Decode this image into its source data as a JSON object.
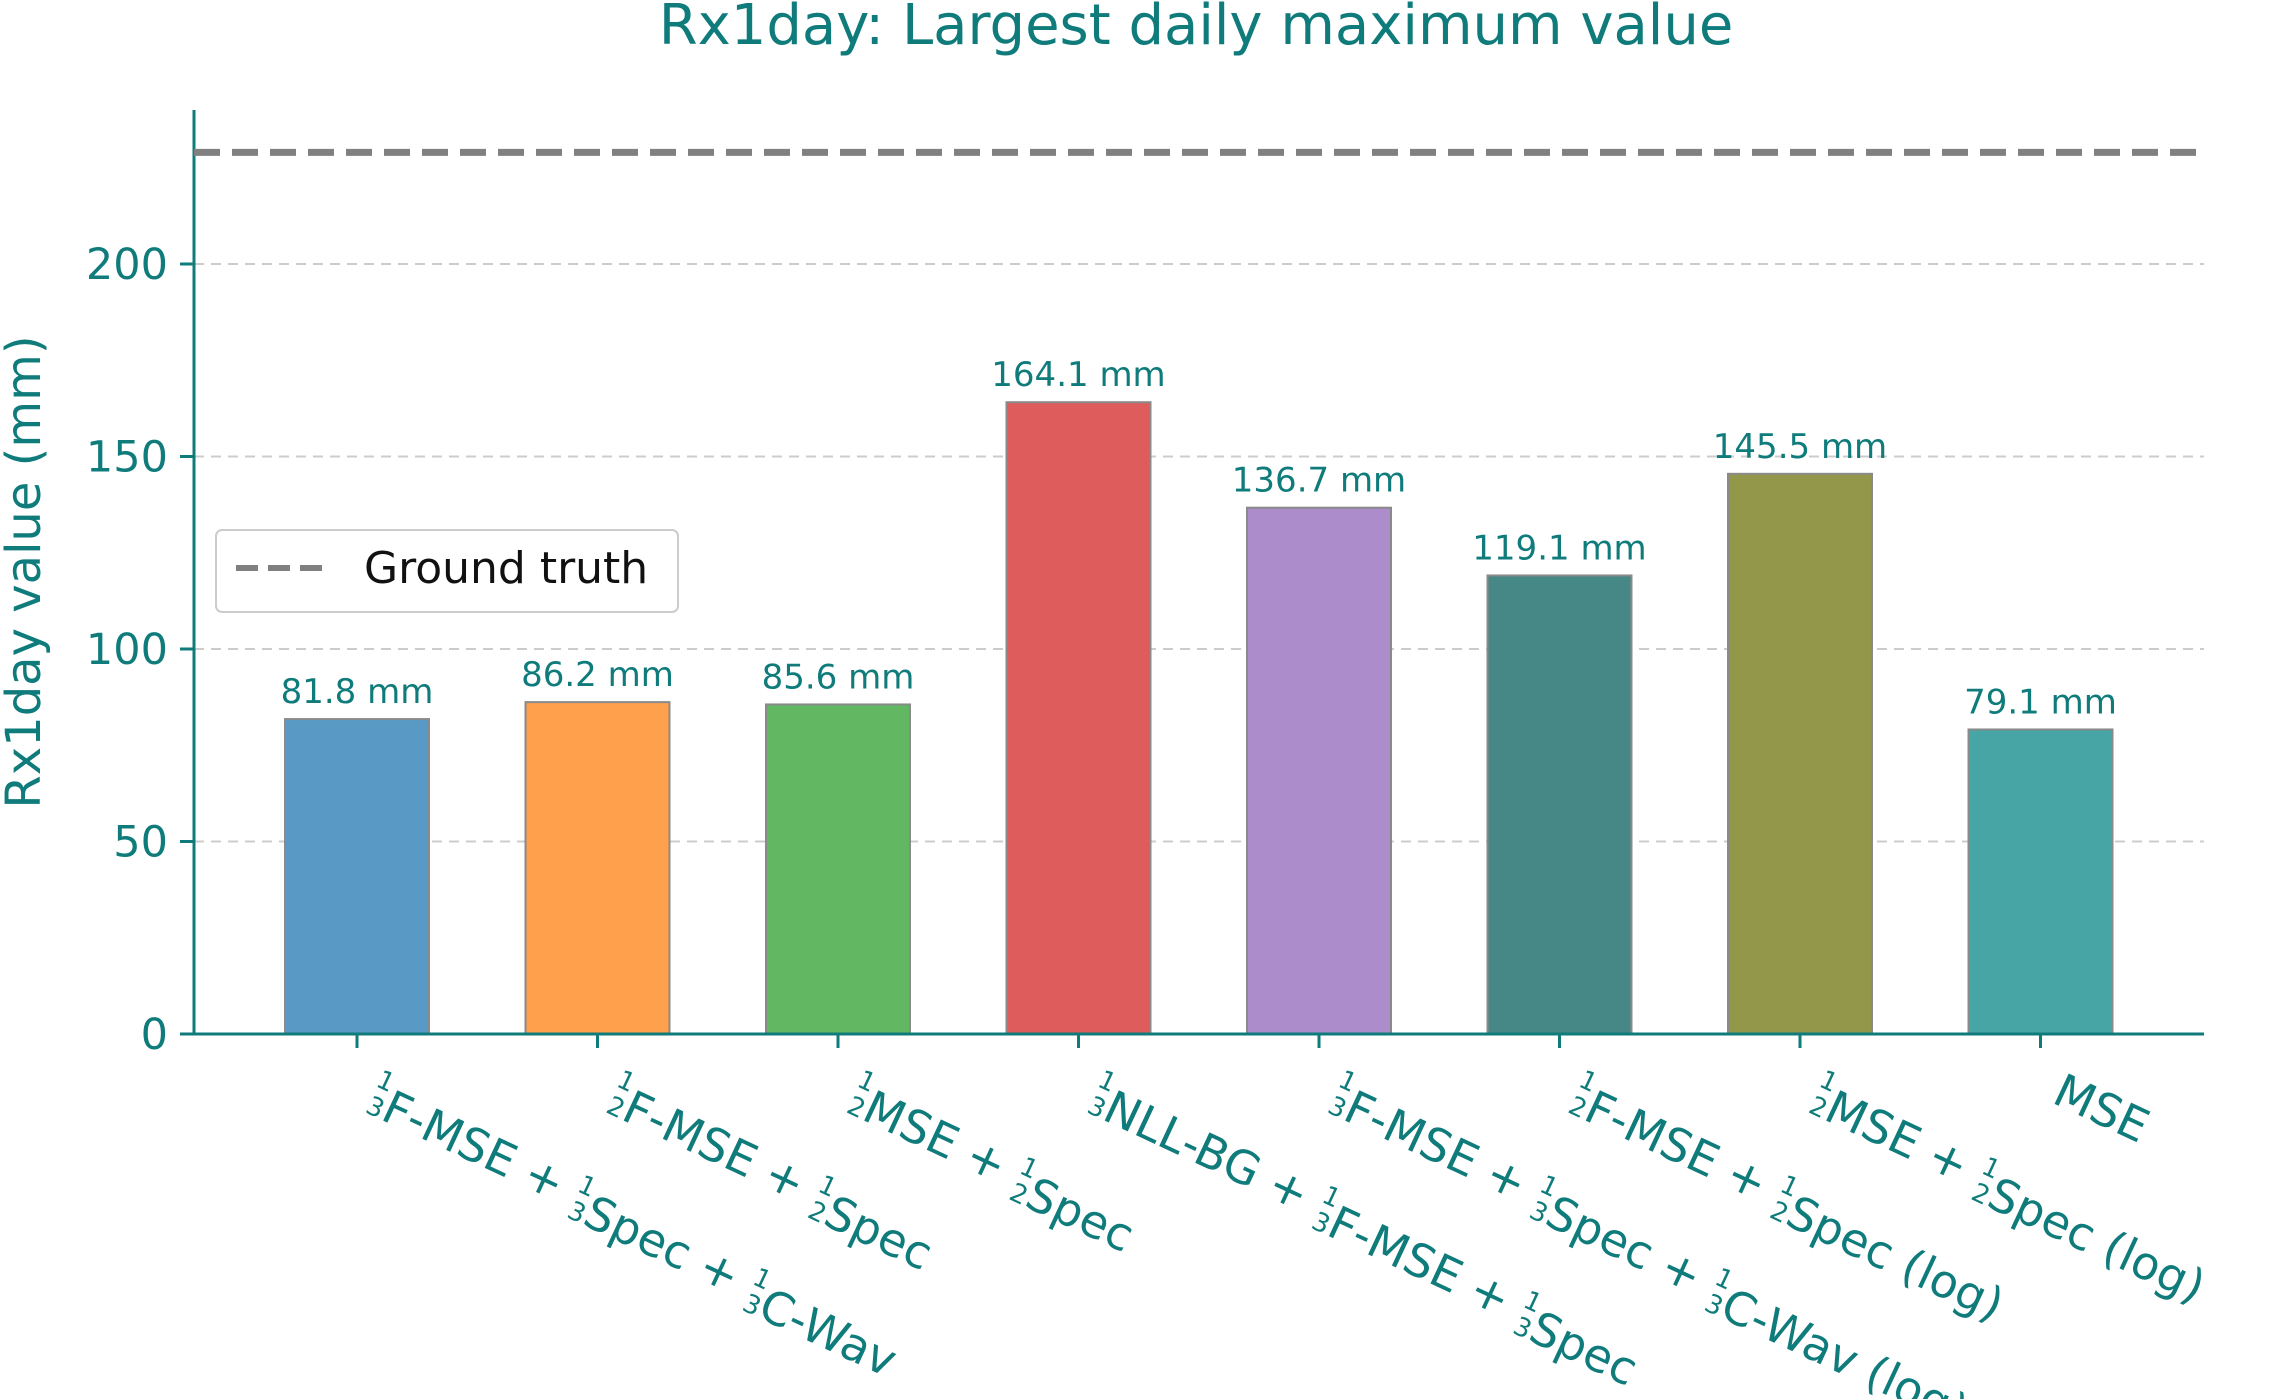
{
  "chart_data": {
    "type": "bar",
    "title": "Rx1day: Largest daily maximum value",
    "ylabel": "Rx1day value (mm)",
    "xlabel": "",
    "ylim": [
      0,
      240
    ],
    "yticks": [
      0,
      50,
      100,
      150,
      200
    ],
    "grid": "y-dashed",
    "categories": [
      [
        {
          "frac": [
            "1",
            "3"
          ]
        },
        {
          "t": "F-MSE + "
        },
        {
          "frac": [
            "1",
            "3"
          ]
        },
        {
          "t": "Spec + "
        },
        {
          "frac": [
            "1",
            "3"
          ]
        },
        {
          "t": "C-Wav"
        }
      ],
      [
        {
          "frac": [
            "1",
            "2"
          ]
        },
        {
          "t": "F-MSE + "
        },
        {
          "frac": [
            "1",
            "2"
          ]
        },
        {
          "t": "Spec"
        }
      ],
      [
        {
          "frac": [
            "1",
            "2"
          ]
        },
        {
          "t": "MSE + "
        },
        {
          "frac": [
            "1",
            "2"
          ]
        },
        {
          "t": "Spec"
        }
      ],
      [
        {
          "frac": [
            "1",
            "3"
          ]
        },
        {
          "t": "NLL-BG + "
        },
        {
          "frac": [
            "1",
            "3"
          ]
        },
        {
          "t": "F-MSE + "
        },
        {
          "frac": [
            "1",
            "3"
          ]
        },
        {
          "t": "Spec"
        }
      ],
      [
        {
          "frac": [
            "1",
            "3"
          ]
        },
        {
          "t": "F-MSE + "
        },
        {
          "frac": [
            "1",
            "3"
          ]
        },
        {
          "t": "Spec + "
        },
        {
          "frac": [
            "1",
            "3"
          ]
        },
        {
          "t": "C-Wav (log)"
        }
      ],
      [
        {
          "frac": [
            "1",
            "2"
          ]
        },
        {
          "t": "F-MSE + "
        },
        {
          "frac": [
            "1",
            "2"
          ]
        },
        {
          "t": "Spec (log)"
        }
      ],
      [
        {
          "frac": [
            "1",
            "2"
          ]
        },
        {
          "t": "MSE + "
        },
        {
          "frac": [
            "1",
            "2"
          ]
        },
        {
          "t": "Spec (log)"
        }
      ],
      [
        {
          "t": "MSE"
        }
      ]
    ],
    "values": [
      81.8,
      86.2,
      85.6,
      164.1,
      136.7,
      119.1,
      145.5,
      79.1
    ],
    "data_labels": [
      "81.8 mm",
      "86.2 mm",
      "85.6 mm",
      "164.1 mm",
      "136.7 mm",
      "119.1 mm",
      "145.5 mm",
      "79.1 mm"
    ],
    "colors": [
      "#5899c6",
      "#fea04c",
      "#62b862",
      "#de5c5c",
      "#ad8ccb",
      "#458885",
      "#93974a",
      "#48a5a6"
    ],
    "reference_line": {
      "value": 229,
      "name": "Ground truth",
      "color": "#808080",
      "style": "dashed"
    },
    "legend": {
      "entries": [
        "Ground truth"
      ],
      "placement": "center-left"
    },
    "text_color": "#0f7b7b",
    "axis_color": "#0f7b7b"
  }
}
